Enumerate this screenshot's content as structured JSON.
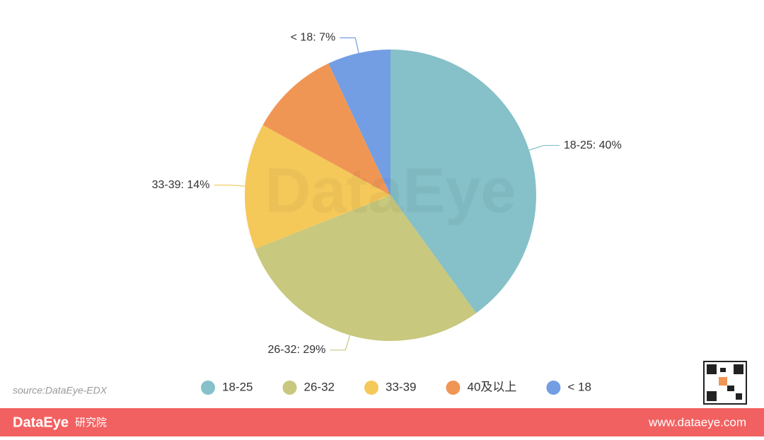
{
  "chart_data": {
    "type": "pie",
    "categories": [
      "18-25",
      "26-32",
      "33-39",
      "40及以上",
      "< 18"
    ],
    "values": [
      40,
      29,
      14,
      10,
      7
    ],
    "value_labels": [
      "18-25: 40%",
      "26-32: 29%",
      "33-39: 14%",
      null,
      "< 18: 7%"
    ],
    "colors": [
      "#86c0c8",
      "#c8c87e",
      "#f5c85a",
      "#f09655",
      "#739ee3"
    ],
    "legend": "bottom"
  },
  "watermark": "DataEye",
  "source": "source:DataEye-EDX",
  "footer": {
    "brand": "DataEye",
    "brand_suffix": "研究院",
    "site": "www.dataeye.com"
  }
}
